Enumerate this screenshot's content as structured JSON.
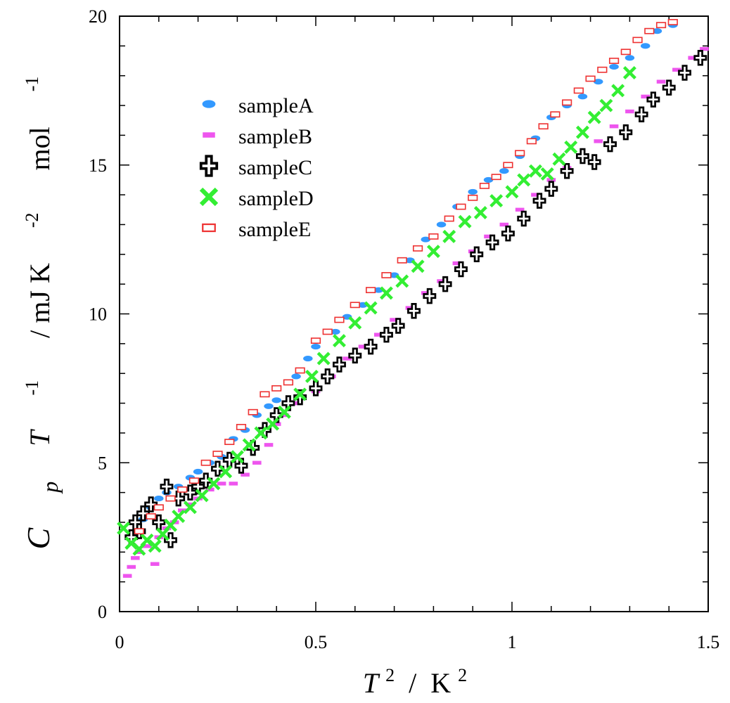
{
  "chart_data": {
    "type": "scatter",
    "title": "",
    "xlabel": {
      "base": "T",
      "exp": "2",
      "sep": " / ",
      "unit": "K",
      "unit_exp": "2"
    },
    "ylabel": {
      "c": "C",
      "p": "p",
      "t": "T",
      "t_exp": "-1",
      "unit1": " / mJ K",
      "unit1_exp": "-2",
      "unit2": " mol",
      "unit2_exp": "-1"
    },
    "xlim": [
      0,
      1.5
    ],
    "ylim": [
      0,
      20
    ],
    "xticks": [
      0,
      0.5,
      1,
      1.5
    ],
    "xtick_labels": [
      "0",
      "0.5",
      "1",
      "1.5"
    ],
    "yticks": [
      0,
      5,
      10,
      15,
      20
    ],
    "ytick_labels": [
      "0",
      "5",
      "10",
      "15",
      "20"
    ],
    "grid": false,
    "legend_position": "upper-left",
    "series": [
      {
        "name": "sampleA",
        "marker": "filled-circle",
        "color": "#3399ff",
        "points": [
          [
            0.04,
            2.6
          ],
          [
            0.06,
            3.1
          ],
          [
            0.08,
            3.5
          ],
          [
            0.1,
            3.8
          ],
          [
            0.12,
            4.0
          ],
          [
            0.15,
            4.2
          ],
          [
            0.18,
            4.5
          ],
          [
            0.2,
            4.7
          ],
          [
            0.23,
            5.0
          ],
          [
            0.26,
            5.2
          ],
          [
            0.29,
            5.8
          ],
          [
            0.32,
            6.1
          ],
          [
            0.35,
            6.6
          ],
          [
            0.38,
            6.9
          ],
          [
            0.4,
            7.1
          ],
          [
            0.45,
            7.9
          ],
          [
            0.48,
            8.5
          ],
          [
            0.5,
            8.9
          ],
          [
            0.55,
            9.4
          ],
          [
            0.58,
            9.9
          ],
          [
            0.62,
            10.3
          ],
          [
            0.66,
            10.8
          ],
          [
            0.7,
            11.3
          ],
          [
            0.74,
            11.8
          ],
          [
            0.78,
            12.5
          ],
          [
            0.82,
            13.0
          ],
          [
            0.86,
            13.6
          ],
          [
            0.9,
            14.1
          ],
          [
            0.94,
            14.5
          ],
          [
            0.98,
            14.8
          ],
          [
            1.02,
            15.3
          ],
          [
            1.06,
            15.9
          ],
          [
            1.1,
            16.6
          ],
          [
            1.14,
            17.0
          ],
          [
            1.18,
            17.3
          ],
          [
            1.22,
            17.8
          ],
          [
            1.26,
            18.3
          ],
          [
            1.3,
            18.6
          ],
          [
            1.34,
            19.0
          ],
          [
            1.37,
            19.5
          ],
          [
            1.41,
            19.7
          ]
        ]
      },
      {
        "name": "sampleB",
        "marker": "filled-square",
        "color": "#ee55ee",
        "points": [
          [
            0.02,
            1.2
          ],
          [
            0.03,
            1.5
          ],
          [
            0.04,
            1.8
          ],
          [
            0.05,
            2.0
          ],
          [
            0.07,
            2.2
          ],
          [
            0.09,
            1.6
          ],
          [
            0.1,
            2.5
          ],
          [
            0.12,
            2.8
          ],
          [
            0.14,
            3.0
          ],
          [
            0.16,
            3.4
          ],
          [
            0.18,
            3.6
          ],
          [
            0.2,
            3.8
          ],
          [
            0.23,
            4.1
          ],
          [
            0.26,
            4.3
          ],
          [
            0.29,
            4.3
          ],
          [
            0.32,
            4.6
          ],
          [
            0.35,
            5.0
          ],
          [
            0.38,
            5.6
          ],
          [
            0.4,
            6.3
          ],
          [
            0.42,
            6.6
          ],
          [
            0.45,
            7.0
          ],
          [
            0.5,
            7.4
          ],
          [
            0.54,
            7.9
          ],
          [
            0.58,
            8.5
          ],
          [
            0.62,
            8.9
          ],
          [
            0.66,
            9.3
          ],
          [
            0.7,
            9.8
          ],
          [
            0.74,
            10.2
          ],
          [
            0.78,
            10.7
          ],
          [
            0.82,
            11.1
          ],
          [
            0.86,
            11.7
          ],
          [
            0.9,
            12.1
          ],
          [
            0.94,
            12.6
          ],
          [
            0.98,
            13.0
          ],
          [
            1.02,
            13.5
          ],
          [
            1.06,
            14.0
          ],
          [
            1.1,
            14.5
          ],
          [
            1.14,
            14.9
          ],
          [
            1.18,
            15.3
          ],
          [
            1.22,
            15.8
          ],
          [
            1.26,
            16.3
          ],
          [
            1.3,
            16.8
          ],
          [
            1.34,
            17.3
          ],
          [
            1.38,
            17.8
          ],
          [
            1.42,
            18.2
          ],
          [
            1.46,
            18.6
          ],
          [
            1.49,
            18.9
          ]
        ]
      },
      {
        "name": "sampleC",
        "marker": "plus-open",
        "color": "#000000",
        "points": [
          [
            0.03,
            2.5
          ],
          [
            0.04,
            3.0
          ],
          [
            0.05,
            2.7
          ],
          [
            0.06,
            3.3
          ],
          [
            0.08,
            3.6
          ],
          [
            0.1,
            3.0
          ],
          [
            0.12,
            4.2
          ],
          [
            0.13,
            2.4
          ],
          [
            0.15,
            3.8
          ],
          [
            0.18,
            4.0
          ],
          [
            0.2,
            4.2
          ],
          [
            0.22,
            4.4
          ],
          [
            0.25,
            4.8
          ],
          [
            0.28,
            5.1
          ],
          [
            0.31,
            4.9
          ],
          [
            0.34,
            5.5
          ],
          [
            0.37,
            6.1
          ],
          [
            0.4,
            6.6
          ],
          [
            0.43,
            7.0
          ],
          [
            0.46,
            7.2
          ],
          [
            0.5,
            7.5
          ],
          [
            0.53,
            7.9
          ],
          [
            0.56,
            8.3
          ],
          [
            0.6,
            8.6
          ],
          [
            0.64,
            8.9
          ],
          [
            0.68,
            9.3
          ],
          [
            0.71,
            9.6
          ],
          [
            0.75,
            10.1
          ],
          [
            0.79,
            10.6
          ],
          [
            0.83,
            11.0
          ],
          [
            0.87,
            11.5
          ],
          [
            0.91,
            12.0
          ],
          [
            0.95,
            12.4
          ],
          [
            0.99,
            12.7
          ],
          [
            1.03,
            13.2
          ],
          [
            1.07,
            13.8
          ],
          [
            1.1,
            14.2
          ],
          [
            1.14,
            14.8
          ],
          [
            1.18,
            15.3
          ],
          [
            1.21,
            15.1
          ],
          [
            1.25,
            15.7
          ],
          [
            1.29,
            16.1
          ],
          [
            1.33,
            16.7
          ],
          [
            1.36,
            17.2
          ],
          [
            1.4,
            17.6
          ],
          [
            1.44,
            18.1
          ],
          [
            1.48,
            18.6
          ]
        ]
      },
      {
        "name": "sampleD",
        "marker": "cross",
        "color": "#33ee33",
        "points": [
          [
            0.01,
            2.8
          ],
          [
            0.03,
            2.3
          ],
          [
            0.05,
            2.1
          ],
          [
            0.07,
            2.4
          ],
          [
            0.09,
            2.2
          ],
          [
            0.11,
            2.6
          ],
          [
            0.13,
            2.9
          ],
          [
            0.15,
            3.2
          ],
          [
            0.18,
            3.5
          ],
          [
            0.21,
            3.9
          ],
          [
            0.24,
            4.3
          ],
          [
            0.27,
            4.7
          ],
          [
            0.3,
            5.2
          ],
          [
            0.33,
            5.6
          ],
          [
            0.36,
            6.0
          ],
          [
            0.39,
            6.3
          ],
          [
            0.42,
            6.7
          ],
          [
            0.46,
            7.3
          ],
          [
            0.49,
            7.9
          ],
          [
            0.52,
            8.5
          ],
          [
            0.56,
            9.1
          ],
          [
            0.6,
            9.7
          ],
          [
            0.64,
            10.2
          ],
          [
            0.68,
            10.7
          ],
          [
            0.72,
            11.1
          ],
          [
            0.76,
            11.6
          ],
          [
            0.8,
            12.1
          ],
          [
            0.84,
            12.6
          ],
          [
            0.88,
            13.1
          ],
          [
            0.92,
            13.4
          ],
          [
            0.96,
            13.8
          ],
          [
            1.0,
            14.1
          ],
          [
            1.03,
            14.5
          ],
          [
            1.06,
            14.8
          ],
          [
            1.09,
            14.7
          ],
          [
            1.12,
            15.2
          ],
          [
            1.15,
            15.6
          ],
          [
            1.18,
            16.1
          ],
          [
            1.21,
            16.6
          ],
          [
            1.24,
            17.0
          ],
          [
            1.27,
            17.5
          ],
          [
            1.3,
            18.1
          ]
        ]
      },
      {
        "name": "sampleE",
        "marker": "open-square",
        "color": "#ee3333",
        "points": [
          [
            0.05,
            2.7
          ],
          [
            0.08,
            3.2
          ],
          [
            0.1,
            3.5
          ],
          [
            0.13,
            3.8
          ],
          [
            0.16,
            4.1
          ],
          [
            0.19,
            4.4
          ],
          [
            0.22,
            5.0
          ],
          [
            0.25,
            5.3
          ],
          [
            0.28,
            5.7
          ],
          [
            0.31,
            6.2
          ],
          [
            0.34,
            6.7
          ],
          [
            0.37,
            7.3
          ],
          [
            0.4,
            7.5
          ],
          [
            0.43,
            7.7
          ],
          [
            0.46,
            8.1
          ],
          [
            0.5,
            9.1
          ],
          [
            0.53,
            9.4
          ],
          [
            0.56,
            9.8
          ],
          [
            0.6,
            10.3
          ],
          [
            0.64,
            10.8
          ],
          [
            0.68,
            11.3
          ],
          [
            0.72,
            11.8
          ],
          [
            0.76,
            12.2
          ],
          [
            0.8,
            12.6
          ],
          [
            0.84,
            13.2
          ],
          [
            0.87,
            13.6
          ],
          [
            0.9,
            13.9
          ],
          [
            0.93,
            14.3
          ],
          [
            0.96,
            14.6
          ],
          [
            0.99,
            15.0
          ],
          [
            1.02,
            15.4
          ],
          [
            1.05,
            15.8
          ],
          [
            1.08,
            16.3
          ],
          [
            1.11,
            16.7
          ],
          [
            1.14,
            17.1
          ],
          [
            1.17,
            17.5
          ],
          [
            1.2,
            17.9
          ],
          [
            1.23,
            18.2
          ],
          [
            1.26,
            18.5
          ],
          [
            1.29,
            18.8
          ],
          [
            1.32,
            19.2
          ],
          [
            1.35,
            19.5
          ],
          [
            1.38,
            19.7
          ],
          [
            1.41,
            19.8
          ]
        ]
      }
    ]
  }
}
